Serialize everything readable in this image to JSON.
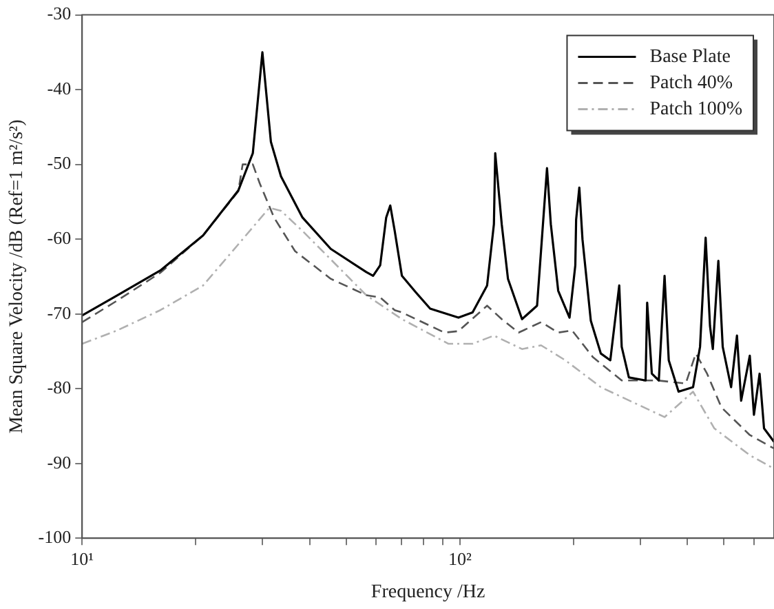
{
  "chart_data": {
    "type": "line",
    "xlabel": "Frequency /Hz",
    "ylabel": "Mean Square Velocity /dB (Ref=1 m²/s²)",
    "log": "x",
    "xlim": [
      10,
      678
    ],
    "ylim": [
      -100,
      -30
    ],
    "xticks": [
      {
        "value": 10,
        "label": "10¹"
      },
      {
        "value": 20,
        "label": null
      },
      {
        "value": 30,
        "label": null
      },
      {
        "value": 40,
        "label": null
      },
      {
        "value": 50,
        "label": null
      },
      {
        "value": 60,
        "label": null
      },
      {
        "value": 70,
        "label": null
      },
      {
        "value": 80,
        "label": null
      },
      {
        "value": 90,
        "label": null
      },
      {
        "value": 100,
        "label": "10²"
      },
      {
        "value": 200,
        "label": null
      },
      {
        "value": 300,
        "label": null
      },
      {
        "value": 400,
        "label": null
      },
      {
        "value": 500,
        "label": null
      },
      {
        "value": 600,
        "label": null
      }
    ],
    "yticks": [
      -100,
      -90,
      -80,
      -70,
      -60,
      -50,
      -40,
      -30
    ],
    "grid": false,
    "legend": "top right",
    "marker": "none",
    "series": [
      {
        "name": "Base Plate",
        "color": "#000000",
        "line_style": "solid",
        "x": [
          10,
          12.4,
          16.1,
          20.9,
          25.9,
          28.3,
          30,
          31.6,
          33.6,
          38.3,
          45.5,
          56.5,
          58.9,
          61.5,
          63.8,
          65.4,
          67.2,
          70.2,
          76.4,
          83.4,
          99.1,
          108,
          118,
          123,
          124,
          129,
          134,
          146,
          160,
          170,
          174,
          182,
          195,
          202,
          203,
          207,
          211,
          222,
          236,
          250,
          264,
          268,
          280,
          310,
          313,
          322,
          336,
          348,
          357,
          379,
          414,
          432,
          447,
          459,
          467,
          483,
          496,
          522,
          541,
          555,
          585,
          600,
          621,
          638,
          678
        ],
        "values": [
          -70.2,
          -67.5,
          -64.2,
          -59.5,
          -53.5,
          -48.5,
          -35,
          -47,
          -51.6,
          -57.1,
          -61.3,
          -64.4,
          -64.9,
          -63.5,
          -57.1,
          -55.5,
          -58.9,
          -64.9,
          -67.1,
          -69.3,
          -70.5,
          -69.8,
          -66.2,
          -58,
          -48.5,
          -58,
          -65.3,
          -70.7,
          -68.9,
          -50.5,
          -58,
          -66.9,
          -70.5,
          -63.5,
          -57.4,
          -53.1,
          -60,
          -70.9,
          -75.3,
          -76.2,
          -66.2,
          -74.4,
          -78.5,
          -78.9,
          -68.5,
          -78,
          -78.9,
          -64.9,
          -76.2,
          -80.4,
          -79.8,
          -74.4,
          -59.8,
          -71.6,
          -74.7,
          -62.9,
          -74.4,
          -79.8,
          -72.9,
          -81.6,
          -75.6,
          -83.5,
          -78,
          -85.3,
          -87.1
        ]
      },
      {
        "name": "Patch 40%",
        "color": "#555555",
        "line_style": "dashed",
        "x": [
          10,
          12.4,
          16.1,
          20.9,
          25.9,
          26.6,
          28.3,
          29.5,
          32.2,
          36.6,
          45.5,
          56.5,
          61.5,
          67.2,
          70.2,
          91,
          99.1,
          118,
          129,
          143,
          164,
          182,
          198,
          225,
          268,
          333,
          396,
          421,
          451,
          492,
          585,
          678
        ],
        "values": [
          -71.1,
          -68.2,
          -64.5,
          -59.5,
          -53.6,
          -50,
          -50,
          -52.5,
          -57.1,
          -61.6,
          -65.3,
          -67.5,
          -67.8,
          -69.5,
          -69.8,
          -72.5,
          -72.3,
          -68.9,
          -70.7,
          -72.5,
          -71.1,
          -72.5,
          -72.2,
          -75.8,
          -78.9,
          -78.9,
          -79.3,
          -75.3,
          -78,
          -82.5,
          -86.2,
          -88
        ]
      },
      {
        "name": "Patch 100%",
        "color": "#b0b0b0",
        "line_style": "dotted",
        "x": [
          10,
          12.4,
          16.1,
          20.9,
          25.9,
          31.3,
          33.6,
          38.3,
          45.5,
          56.5,
          70.2,
          93.3,
          108,
          123,
          146,
          164,
          190,
          236,
          348,
          414,
          471,
          585,
          678
        ],
        "values": [
          -74,
          -72.2,
          -69.5,
          -66.2,
          -60.7,
          -55.8,
          -56.2,
          -58.9,
          -62.7,
          -67.5,
          -70.7,
          -74,
          -74,
          -72.9,
          -74.7,
          -74.2,
          -76.2,
          -79.8,
          -83.8,
          -80.4,
          -85.3,
          -88.9,
          -90.7
        ]
      }
    ]
  }
}
